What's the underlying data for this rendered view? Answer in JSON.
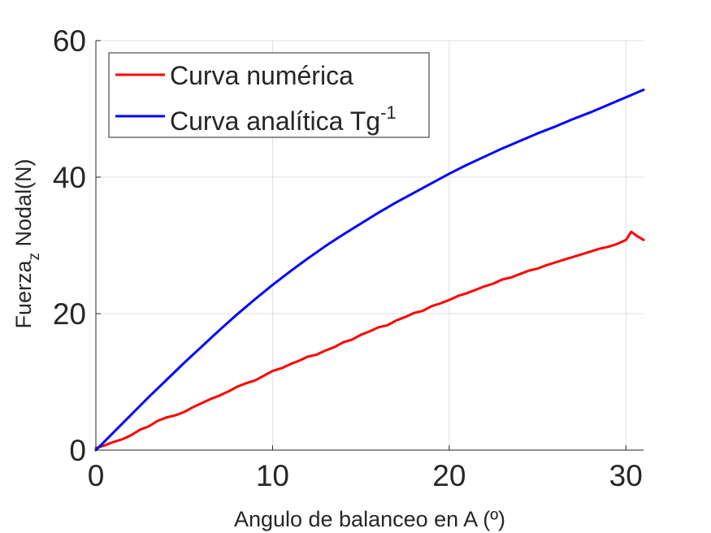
{
  "chart_data": {
    "type": "line",
    "xlabel": "Angulo de balanceo en A (º)",
    "ylabel": "Fuerza",
    "ylabel_subscript": "z",
    "ylabel_suffix": " Nodal(N)",
    "xlim": [
      0,
      31
    ],
    "ylim": [
      0,
      60
    ],
    "xticks": [
      0,
      10,
      20,
      30
    ],
    "yticks": [
      0,
      20,
      40,
      60
    ],
    "xtick_labels": [
      "0",
      "10",
      "20",
      "30"
    ],
    "ytick_labels": [
      "0",
      "20",
      "40",
      "60"
    ],
    "grid": true,
    "legend_position": "top-left",
    "series": [
      {
        "name": "Curva numérica",
        "color": "#ff0000",
        "x": [
          0,
          0.5,
          1.0,
          1.5,
          2.0,
          2.5,
          3.0,
          3.5,
          4.0,
          4.5,
          5.0,
          5.5,
          6.0,
          6.5,
          7.0,
          7.5,
          8.0,
          8.5,
          9.0,
          9.5,
          10.0,
          10.5,
          11.0,
          11.5,
          12.0,
          12.5,
          13.0,
          13.5,
          14.0,
          14.5,
          15.0,
          15.5,
          16.0,
          16.5,
          17.0,
          17.5,
          18.0,
          18.5,
          19.0,
          19.5,
          20.0,
          20.5,
          21.0,
          21.5,
          22.0,
          22.5,
          23.0,
          23.5,
          24.0,
          24.5,
          25.0,
          25.5,
          26.0,
          26.5,
          27.0,
          27.5,
          28.0,
          28.5,
          29.0,
          29.5,
          30.0,
          30.3,
          30.6,
          31.0
        ],
        "y": [
          0.3,
          0.7,
          1.2,
          1.6,
          2.2,
          3.0,
          3.5,
          4.3,
          4.8,
          5.1,
          5.6,
          6.3,
          6.9,
          7.5,
          8.0,
          8.6,
          9.3,
          9.8,
          10.2,
          10.9,
          11.6,
          12.0,
          12.6,
          13.1,
          13.7,
          14.0,
          14.6,
          15.1,
          15.8,
          16.2,
          16.9,
          17.4,
          18.0,
          18.3,
          19.0,
          19.5,
          20.1,
          20.4,
          21.1,
          21.5,
          22.0,
          22.6,
          23.0,
          23.5,
          24.0,
          24.4,
          25.0,
          25.3,
          25.8,
          26.3,
          26.6,
          27.1,
          27.5,
          27.9,
          28.3,
          28.7,
          29.1,
          29.5,
          29.8,
          30.2,
          30.8,
          32.0,
          31.4,
          30.8
        ]
      },
      {
        "name": "Curva analítica Tg",
        "name_superscript": "-1",
        "color": "#0000ff",
        "x": [
          0,
          1,
          2,
          3,
          4,
          5,
          6,
          7,
          8,
          9,
          10,
          11,
          12,
          13,
          14,
          15,
          16,
          17,
          18,
          19,
          20,
          21,
          22,
          23,
          24,
          25,
          26,
          27,
          28,
          29,
          30,
          31
        ],
        "y": [
          0,
          2.6,
          5.2,
          7.8,
          10.3,
          12.8,
          15.2,
          17.6,
          19.9,
          22.1,
          24.2,
          26.2,
          28.1,
          29.9,
          31.6,
          33.2,
          34.8,
          36.3,
          37.7,
          39.1,
          40.5,
          41.8,
          43.0,
          44.2,
          45.3,
          46.4,
          47.4,
          48.5,
          49.5,
          50.6,
          51.7,
          52.8
        ]
      }
    ]
  }
}
